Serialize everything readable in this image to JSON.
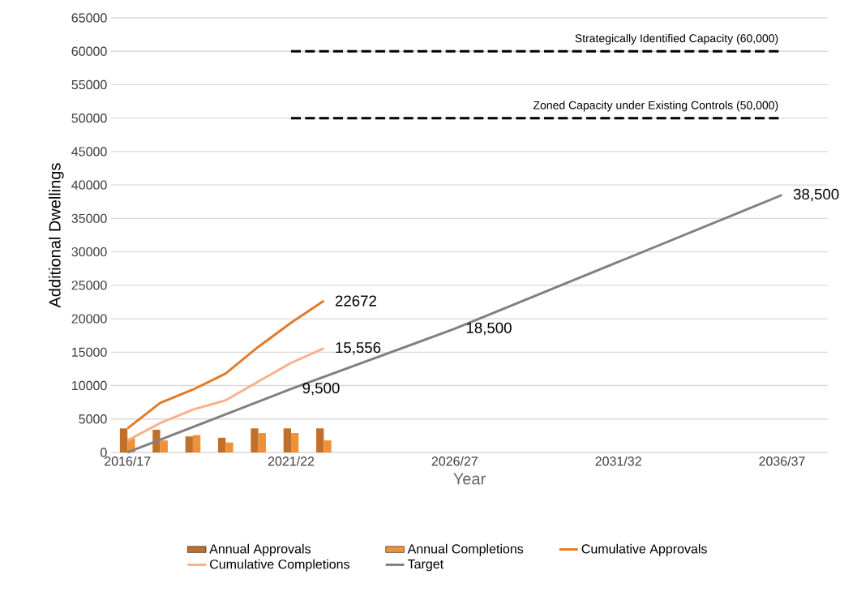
{
  "chart_data": {
    "type": "bar",
    "xlabel": "Year",
    "ylabel": "Additional Dwellings",
    "categories": [
      "2016/17",
      null,
      null,
      null,
      null,
      "2021/22",
      null,
      null,
      null,
      null,
      "2026/27",
      null,
      null,
      null,
      null,
      "2031/32",
      null,
      null,
      null,
      null,
      "2036/37"
    ],
    "series": [
      {
        "name": "Annual Approvals",
        "color": "#c0702a",
        "values": [
          3600,
          3400,
          2400,
          2200,
          3600,
          3600,
          3600,
          null,
          null,
          null,
          null,
          null,
          null,
          null,
          null,
          null,
          null,
          null,
          null,
          null,
          null
        ]
      },
      {
        "name": "Annual Completions",
        "color": "#f0913a",
        "values": [
          2100,
          1800,
          2600,
          1500,
          2900,
          2900,
          1800,
          null,
          null,
          null,
          null,
          null,
          null,
          null,
          null,
          null,
          null,
          null,
          null,
          null,
          null
        ]
      },
      {
        "name": "Cumulative Approvals",
        "type": "line",
        "color": "#e07b28",
        "values": [
          3600,
          7400,
          9400,
          11800,
          15800,
          19400,
          22672,
          null,
          null,
          null,
          null,
          null,
          null,
          null,
          null,
          null,
          null,
          null,
          null,
          null,
          null
        ],
        "value_labels": [
          null,
          null,
          null,
          null,
          null,
          null,
          "22672",
          null,
          null,
          null,
          null,
          null,
          null,
          null,
          null,
          null,
          null,
          null,
          null,
          null,
          null
        ]
      },
      {
        "name": "Cumulative Completions",
        "type": "line",
        "color": "#f8b08a",
        "values": [
          1800,
          4400,
          6400,
          7800,
          10600,
          13400,
          15556,
          null,
          null,
          null,
          null,
          null,
          null,
          null,
          null,
          null,
          null,
          null,
          null,
          null,
          null
        ],
        "value_labels": [
          null,
          null,
          null,
          null,
          null,
          null,
          "15,556",
          null,
          null,
          null,
          null,
          null,
          null,
          null,
          null,
          null,
          null,
          null,
          null,
          null,
          null
        ]
      },
      {
        "name": "Target",
        "type": "line",
        "color": "#808080",
        "values": [
          0,
          null,
          null,
          null,
          null,
          9500,
          null,
          null,
          null,
          null,
          18500,
          null,
          null,
          null,
          null,
          null,
          null,
          null,
          null,
          null,
          38500
        ],
        "value_labels": [
          null,
          null,
          null,
          null,
          null,
          "9,500",
          null,
          null,
          null,
          null,
          "18,500",
          null,
          null,
          null,
          null,
          null,
          null,
          null,
          null,
          null,
          "38,500"
        ]
      },
      {
        "name": "Strategically Identified Capacity (60,000)",
        "type": "line",
        "line_style": "dashed",
        "color": "#000000",
        "values": [
          null,
          null,
          null,
          null,
          null,
          60000,
          60000,
          60000,
          60000,
          60000,
          60000,
          60000,
          60000,
          60000,
          60000,
          60000,
          60000,
          60000,
          60000,
          60000,
          60000
        ]
      },
      {
        "name": "Zoned Capacity under Existing Controls (50,000)",
        "type": "line",
        "line_style": "dashed",
        "color": "#000000",
        "values": [
          null,
          null,
          null,
          null,
          null,
          50000,
          50000,
          50000,
          50000,
          50000,
          50000,
          50000,
          50000,
          50000,
          50000,
          50000,
          50000,
          50000,
          50000,
          50000,
          50000
        ]
      }
    ],
    "ylim": [
      0,
      65000
    ],
    "yticks": [
      0,
      5000,
      10000,
      15000,
      20000,
      25000,
      30000,
      35000,
      40000,
      45000,
      50000,
      55000,
      60000,
      65000
    ],
    "grid": "y",
    "legend": "bottom",
    "marker": "none"
  }
}
